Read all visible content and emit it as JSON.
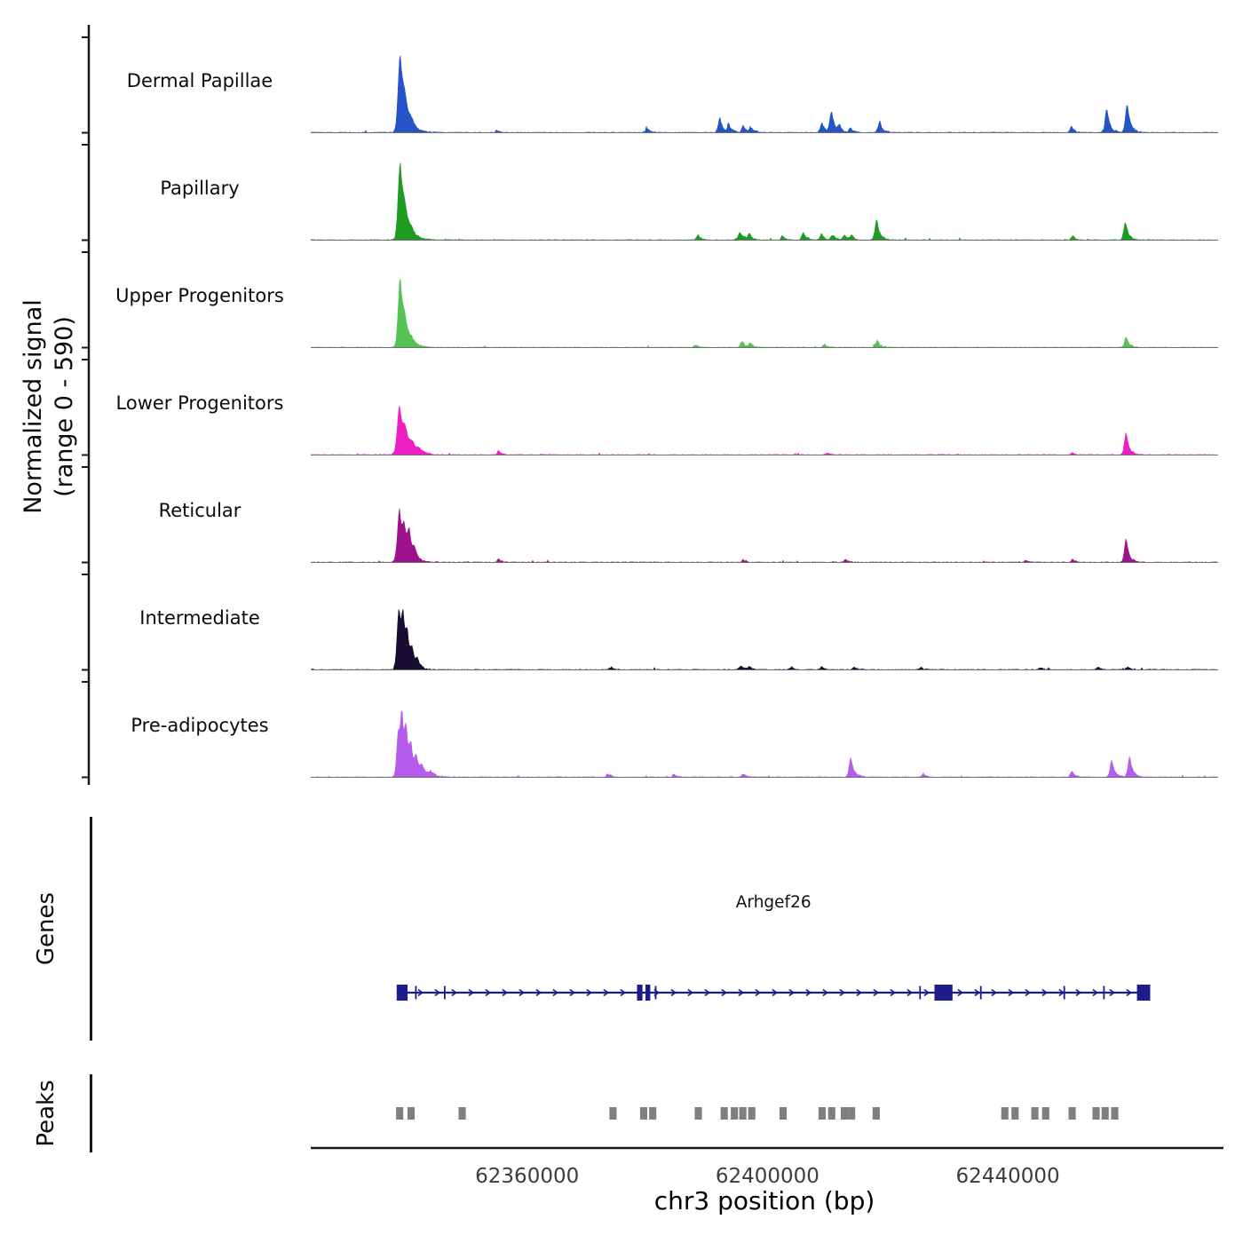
{
  "figure": {
    "y_axis_label_line1": "Normalized signal",
    "y_axis_label_line2": "(range 0 - 590)",
    "genes_label": "Genes",
    "peaks_label": "Peaks",
    "x_axis_label": "chr3 position (bp)"
  },
  "chart_data": {
    "type": "area",
    "title": "",
    "xlabel": "chr3 position (bp)",
    "ylabel": "Normalized signal (range 0 - 590)",
    "signal_max": 590,
    "x_range_bp": [
      62324000,
      62475000
    ],
    "x_ticks": [
      62360000,
      62400000,
      62440000
    ],
    "x_tick_labels": [
      "62360000",
      "62400000",
      "62440000"
    ],
    "peaks_format": "[position_bp, height_0_to_590, width_bp]",
    "tracks": [
      {
        "name": "Dermal Papillae",
        "color": "#2553c8",
        "peaks": [
          [
            62338900,
            590,
            350
          ],
          [
            62339700,
            170,
            450
          ],
          [
            62340800,
            55,
            500
          ],
          [
            62355000,
            12,
            200
          ],
          [
            62380000,
            28,
            250
          ],
          [
            62392100,
            110,
            280
          ],
          [
            62393600,
            55,
            250
          ],
          [
            62396000,
            50,
            250
          ],
          [
            62397200,
            40,
            220
          ],
          [
            62409100,
            70,
            260
          ],
          [
            62410700,
            160,
            300
          ],
          [
            62412000,
            50,
            220
          ],
          [
            62413800,
            35,
            200
          ],
          [
            62418700,
            85,
            260
          ],
          [
            62450600,
            45,
            220
          ],
          [
            62456500,
            190,
            280
          ],
          [
            62459900,
            220,
            300
          ]
        ]
      },
      {
        "name": "Papillary",
        "color": "#1e9c22",
        "peaks": [
          [
            62338900,
            590,
            350
          ],
          [
            62339700,
            150,
            450
          ],
          [
            62340800,
            45,
            500
          ],
          [
            62388500,
            35,
            240
          ],
          [
            62395500,
            55,
            350
          ],
          [
            62397000,
            45,
            240
          ],
          [
            62402500,
            25,
            220
          ],
          [
            62406000,
            50,
            240
          ],
          [
            62409000,
            45,
            240
          ],
          [
            62410800,
            40,
            220
          ],
          [
            62412800,
            40,
            220
          ],
          [
            62414000,
            40,
            200
          ],
          [
            62418200,
            160,
            280
          ],
          [
            62450800,
            30,
            200
          ],
          [
            62459600,
            140,
            280
          ]
        ]
      },
      {
        "name": "Upper Progenitors",
        "color": "#54c254",
        "peaks": [
          [
            62338900,
            540,
            330
          ],
          [
            62339700,
            130,
            420
          ],
          [
            62340800,
            40,
            450
          ],
          [
            62388000,
            15,
            200
          ],
          [
            62395800,
            42,
            280
          ],
          [
            62397200,
            30,
            220
          ],
          [
            62409500,
            20,
            220
          ],
          [
            62418300,
            50,
            250
          ],
          [
            62459700,
            80,
            250
          ]
        ]
      },
      {
        "name": "Lower Progenitors",
        "color": "#ed1fc4",
        "peaks": [
          [
            62338800,
            380,
            380
          ],
          [
            62339800,
            140,
            450
          ],
          [
            62341000,
            60,
            450
          ],
          [
            62342200,
            30,
            400
          ],
          [
            62355300,
            30,
            200
          ],
          [
            62410000,
            14,
            220
          ],
          [
            62450700,
            14,
            200
          ],
          [
            62459700,
            170,
            280
          ]
        ]
      },
      {
        "name": "Reticular",
        "color": "#9e108e",
        "peaks": [
          [
            62338800,
            410,
            350
          ],
          [
            62339600,
            200,
            300
          ],
          [
            62340400,
            200,
            280
          ],
          [
            62341300,
            80,
            300
          ],
          [
            62355300,
            28,
            200
          ],
          [
            62396000,
            14,
            220
          ],
          [
            62413000,
            20,
            220
          ],
          [
            62443000,
            12,
            200
          ],
          [
            62450800,
            25,
            200
          ],
          [
            62459700,
            180,
            270
          ]
        ]
      },
      {
        "name": "Intermediate",
        "color": "#170d33",
        "peaks": [
          [
            62338700,
            480,
            320
          ],
          [
            62339400,
            330,
            280
          ],
          [
            62340100,
            200,
            280
          ],
          [
            62340900,
            120,
            280
          ],
          [
            62341800,
            60,
            300
          ],
          [
            62374000,
            20,
            220
          ],
          [
            62395600,
            25,
            260
          ],
          [
            62397000,
            18,
            220
          ],
          [
            62404000,
            18,
            220
          ],
          [
            62409000,
            15,
            220
          ],
          [
            62414500,
            18,
            220
          ],
          [
            62425500,
            14,
            220
          ],
          [
            62445500,
            14,
            220
          ],
          [
            62455000,
            18,
            220
          ],
          [
            62460000,
            20,
            220
          ]
        ]
      },
      {
        "name": "Pre-adipocytes",
        "color": "#b55bee",
        "peaks": [
          [
            62338600,
            360,
            280
          ],
          [
            62339200,
            430,
            260
          ],
          [
            62339900,
            310,
            260
          ],
          [
            62340700,
            210,
            280
          ],
          [
            62341600,
            130,
            300
          ],
          [
            62342600,
            70,
            350
          ],
          [
            62344000,
            35,
            400
          ],
          [
            62373500,
            22,
            220
          ],
          [
            62384500,
            20,
            220
          ],
          [
            62396000,
            18,
            240
          ],
          [
            62413900,
            150,
            280
          ],
          [
            62426000,
            22,
            220
          ],
          [
            62450700,
            45,
            220
          ],
          [
            62457300,
            130,
            270
          ],
          [
            62460300,
            160,
            270
          ]
        ]
      }
    ],
    "gene": {
      "name": "Arhgef26",
      "chromosome": "chr3",
      "start": 62338300,
      "end": 62463700,
      "strand": "+",
      "color": "#1c1c8c",
      "exons": [
        [
          62338300,
          62340100
        ],
        [
          62378300,
          62379200
        ],
        [
          62379700,
          62380500
        ],
        [
          62427800,
          62430800
        ],
        [
          62461500,
          62463700
        ]
      ],
      "thin_exon_ticks_bp": [
        62341500,
        62346300,
        62381400,
        62425400,
        62435500,
        62449400,
        62456000
      ]
    },
    "peak_color": "#7f7f7f",
    "peak_interval_width_bp": 1200,
    "peak_intervals_bp": [
      62338800,
      62340700,
      62349200,
      62374300,
      62379400,
      62380900,
      62388500,
      62392800,
      62394500,
      62395900,
      62397400,
      62402600,
      62409100,
      62410700,
      62412800,
      62414000,
      62418100,
      62439500,
      62441200,
      62444500,
      62446300,
      62450700,
      62454700,
      62456200,
      62457800
    ]
  }
}
